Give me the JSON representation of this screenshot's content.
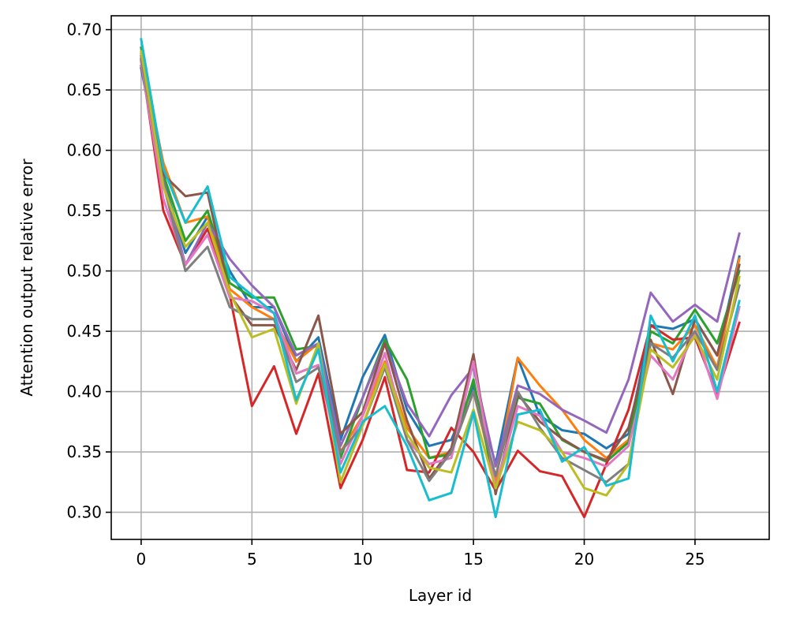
{
  "chart_data": {
    "type": "line",
    "title": "",
    "xlabel": "Layer id",
    "ylabel": "Attention output relative error",
    "xlim": [
      -1.35,
      28.35
    ],
    "ylim": [
      0.2775,
      0.7115
    ],
    "xticks": [
      0,
      5,
      10,
      15,
      20,
      25
    ],
    "xtick_labels": [
      "0",
      "5",
      "10",
      "15",
      "20",
      "25"
    ],
    "yticks": [
      0.3,
      0.35,
      0.4,
      0.45,
      0.5,
      0.55,
      0.6,
      0.65,
      0.7
    ],
    "ytick_labels": [
      "0.30",
      "0.35",
      "0.40",
      "0.45",
      "0.50",
      "0.55",
      "0.60",
      "0.65",
      "0.70"
    ],
    "grid": true,
    "legend": "none",
    "x": [
      0,
      1,
      2,
      3,
      4,
      5,
      6,
      7,
      8,
      9,
      10,
      11,
      12,
      13,
      14,
      15,
      16,
      17,
      18,
      19,
      20,
      21,
      22,
      23,
      24,
      25,
      26,
      27
    ],
    "series": [
      {
        "color": "#1f77b4",
        "values": [
          0.668,
          0.575,
          0.515,
          0.545,
          0.5,
          0.47,
          0.47,
          0.425,
          0.445,
          0.36,
          0.412,
          0.447,
          0.385,
          0.355,
          0.36,
          0.405,
          0.34,
          0.428,
          0.38,
          0.368,
          0.365,
          0.353,
          0.365,
          0.455,
          0.452,
          0.46,
          0.43,
          0.512
        ]
      },
      {
        "color": "#ff7f0e",
        "values": [
          0.68,
          0.59,
          0.54,
          0.545,
          0.485,
          0.47,
          0.46,
          0.425,
          0.44,
          0.35,
          0.38,
          0.425,
          0.37,
          0.345,
          0.35,
          0.4,
          0.325,
          0.428,
          0.405,
          0.385,
          0.36,
          0.345,
          0.36,
          0.44,
          0.435,
          0.455,
          0.42,
          0.51
        ]
      },
      {
        "color": "#2ca02c",
        "values": [
          0.685,
          0.58,
          0.525,
          0.55,
          0.49,
          0.478,
          0.478,
          0.435,
          0.438,
          0.345,
          0.395,
          0.443,
          0.41,
          0.345,
          0.348,
          0.41,
          0.318,
          0.395,
          0.39,
          0.36,
          0.35,
          0.342,
          0.358,
          0.45,
          0.44,
          0.468,
          0.44,
          0.5
        ]
      },
      {
        "color": "#d62728",
        "values": [
          0.675,
          0.55,
          0.505,
          0.535,
          0.48,
          0.388,
          0.421,
          0.365,
          0.415,
          0.32,
          0.36,
          0.412,
          0.335,
          0.333,
          0.37,
          0.35,
          0.318,
          0.351,
          0.334,
          0.33,
          0.296,
          0.34,
          0.385,
          0.455,
          0.443,
          0.445,
          0.398,
          0.457
        ]
      },
      {
        "color": "#9467bd",
        "values": [
          0.678,
          0.575,
          0.505,
          0.54,
          0.51,
          0.488,
          0.47,
          0.43,
          0.44,
          0.355,
          0.395,
          0.44,
          0.39,
          0.363,
          0.397,
          0.42,
          0.338,
          0.405,
          0.398,
          0.385,
          0.376,
          0.366,
          0.41,
          0.482,
          0.458,
          0.472,
          0.458,
          0.531
        ]
      },
      {
        "color": "#8c564b",
        "values": [
          0.67,
          0.58,
          0.562,
          0.565,
          0.48,
          0.455,
          0.455,
          0.418,
          0.463,
          0.365,
          0.383,
          0.44,
          0.376,
          0.328,
          0.353,
          0.431,
          0.315,
          0.398,
          0.375,
          0.361,
          0.35,
          0.343,
          0.37,
          0.443,
          0.398,
          0.46,
          0.43,
          0.505
        ]
      },
      {
        "color": "#e377c2",
        "values": [
          0.673,
          0.56,
          0.505,
          0.53,
          0.478,
          0.475,
          0.465,
          0.415,
          0.422,
          0.34,
          0.38,
          0.432,
          0.36,
          0.34,
          0.345,
          0.425,
          0.32,
          0.388,
          0.38,
          0.35,
          0.345,
          0.338,
          0.355,
          0.43,
          0.41,
          0.45,
          0.394,
          0.47
        ]
      },
      {
        "color": "#7f7f7f",
        "values": [
          0.676,
          0.572,
          0.5,
          0.52,
          0.47,
          0.46,
          0.46,
          0.408,
          0.42,
          0.35,
          0.372,
          0.42,
          0.36,
          0.326,
          0.35,
          0.4,
          0.33,
          0.4,
          0.37,
          0.345,
          0.335,
          0.325,
          0.34,
          0.44,
          0.428,
          0.45,
          0.418,
          0.488
        ]
      },
      {
        "color": "#bcbd22",
        "values": [
          0.682,
          0.57,
          0.52,
          0.54,
          0.482,
          0.445,
          0.452,
          0.39,
          0.44,
          0.325,
          0.372,
          0.423,
          0.365,
          0.337,
          0.333,
          0.385,
          0.32,
          0.375,
          0.368,
          0.35,
          0.32,
          0.314,
          0.34,
          0.435,
          0.42,
          0.446,
          0.41,
          0.495
        ]
      },
      {
        "color": "#17becf",
        "values": [
          0.692,
          0.585,
          0.54,
          0.57,
          0.495,
          0.48,
          0.465,
          0.393,
          0.435,
          0.333,
          0.375,
          0.388,
          0.355,
          0.31,
          0.316,
          0.383,
          0.296,
          0.381,
          0.385,
          0.342,
          0.354,
          0.322,
          0.328,
          0.463,
          0.425,
          0.463,
          0.4,
          0.475
        ]
      }
    ]
  }
}
